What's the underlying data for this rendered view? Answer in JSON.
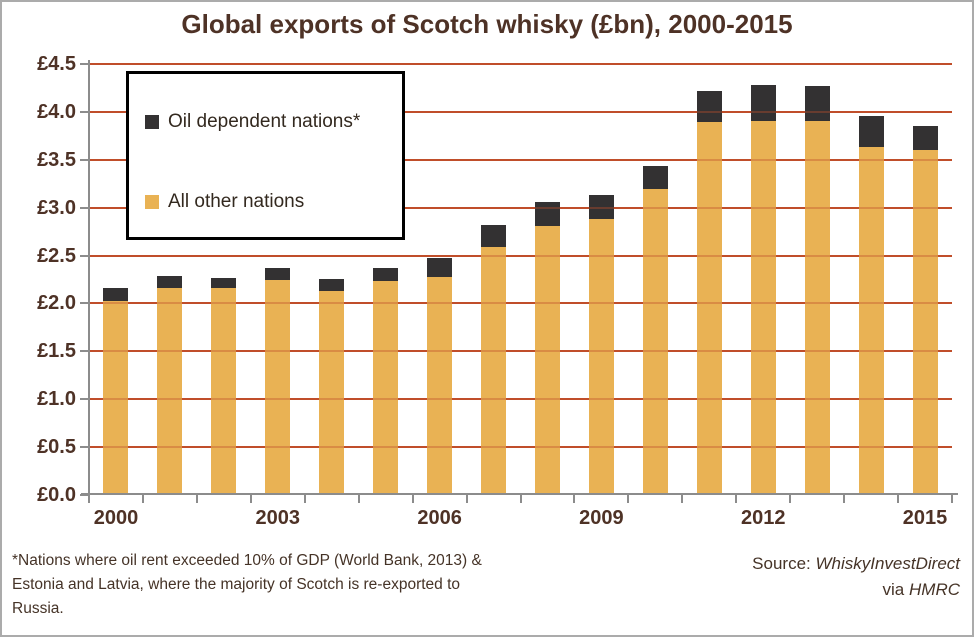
{
  "title": "Global exports of Scotch whisky (£bn), 2000-2015",
  "legend": {
    "items": [
      {
        "label": "Oil dependent nations*",
        "color": "#333132"
      },
      {
        "label": "All other nations",
        "color": "#e9b254"
      }
    ]
  },
  "chart_data": {
    "type": "bar",
    "stacked": true,
    "title": "Global exports of Scotch whisky (£bn), 2000-2015",
    "x": [
      "2000",
      "2001",
      "2002",
      "2003",
      "2004",
      "2005",
      "2006",
      "2007",
      "2008",
      "2009",
      "2010",
      "2011",
      "2012",
      "2013",
      "2014",
      "2015"
    ],
    "series": [
      {
        "name": "All other nations",
        "color": "#e9b254",
        "values": [
          2.03,
          2.16,
          2.16,
          2.24,
          2.13,
          2.23,
          2.28,
          2.59,
          2.81,
          2.88,
          3.19,
          3.89,
          3.9,
          3.9,
          3.63,
          3.6
        ]
      },
      {
        "name": "Oil dependent nations*",
        "color": "#333132",
        "values": [
          0.13,
          0.13,
          0.11,
          0.13,
          0.13,
          0.14,
          0.19,
          0.23,
          0.25,
          0.25,
          0.25,
          0.33,
          0.38,
          0.37,
          0.33,
          0.25
        ]
      }
    ],
    "totals": [
      2.16,
      2.29,
      2.27,
      2.37,
      2.26,
      2.37,
      2.47,
      2.82,
      3.06,
      3.13,
      3.44,
      4.22,
      4.28,
      4.27,
      3.96,
      3.85
    ],
    "xlabel": "",
    "ylabel": "",
    "ylim": [
      0,
      4.5
    ],
    "ytick_step": 0.5,
    "y_tick_labels": [
      "£0.0",
      "£0.5",
      "£1.0",
      "£1.5",
      "£2.0",
      "£2.5",
      "£3.0",
      "£3.5",
      "£4.0",
      "£4.5"
    ],
    "x_label_indices": [
      0,
      3,
      6,
      9,
      12,
      15
    ],
    "grid": true,
    "gridline_color": "#c14e2b",
    "legend_position": "top-left-inside"
  },
  "footnote": {
    "lines": [
      "*Nations where oil rent exceeded 10% of GDP (World Bank, 2013) &",
      "Estonia and Latvia, where the majority of Scotch is re-exported to",
      "Russia."
    ]
  },
  "source": {
    "prefix": "Source: ",
    "name": "WhiskyInvestDirect",
    "via": "via ",
    "org": "HMRC"
  },
  "colors": {
    "background": "#ffffff",
    "frame_border": "#ababab",
    "title_text": "#4e3226",
    "axis_line": "#8c8c8c",
    "gridline": "#c14e2b",
    "bar_gold": "#e9b254",
    "bar_dark": "#333132",
    "footnote_text": "#453327",
    "legend_border": "#000000"
  }
}
